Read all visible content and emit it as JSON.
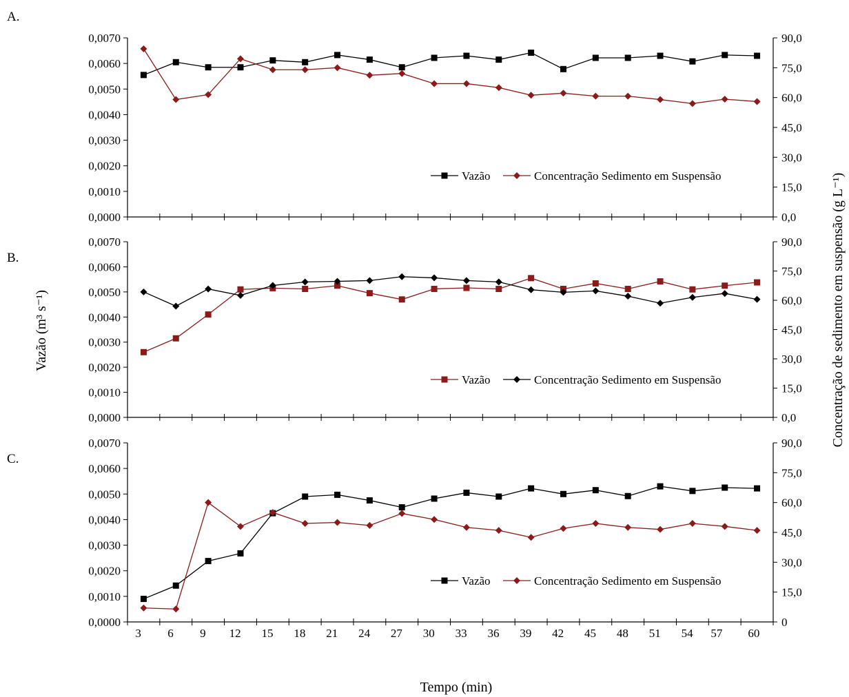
{
  "chart_data": [
    {
      "panel_label": "A.",
      "type": "line",
      "x": [
        4,
        7,
        10,
        13,
        16,
        19,
        22,
        25,
        28,
        31,
        34,
        37,
        40,
        43,
        46,
        49,
        52,
        55,
        58,
        61
      ],
      "left_axis": {
        "ylim": [
          0,
          0.007
        ],
        "ticks": [
          "0,0000",
          "0,0010",
          "0,0020",
          "0,0030",
          "0,0040",
          "0,0050",
          "0,0060",
          "0,0070"
        ]
      },
      "right_axis": {
        "ylim": [
          0,
          90
        ],
        "ticks": [
          "0,0",
          "15,0",
          "30,0",
          "45,0",
          "60,0",
          "75,0",
          "90,0"
        ]
      },
      "series": [
        {
          "name": "Vazão",
          "axis": "left",
          "marker": "square",
          "color": "#000000",
          "values": [
            0.00555,
            0.00605,
            0.00585,
            0.00585,
            0.00612,
            0.00605,
            0.00633,
            0.00615,
            0.00585,
            0.00622,
            0.0063,
            0.00615,
            0.00642,
            0.00578,
            0.00622,
            0.00622,
            0.0063,
            0.00608,
            0.00633,
            0.0063
          ]
        },
        {
          "name": "Concentração Sedimento em Suspensão",
          "axis": "right",
          "marker": "diamond",
          "color": "#8B1A1A",
          "values": [
            84.5,
            59.0,
            61.5,
            79.5,
            74.0,
            74.0,
            75.0,
            71.2,
            72.1,
            67.0,
            67.0,
            65.0,
            61.2,
            62.2,
            60.7,
            60.7,
            59.0,
            57.0,
            59.2,
            58.0
          ]
        }
      ],
      "legend": "bottom-right"
    },
    {
      "panel_label": "B.",
      "type": "line",
      "x": [
        4,
        7,
        10,
        13,
        16,
        19,
        22,
        25,
        28,
        31,
        34,
        37,
        40,
        43,
        46,
        49,
        52,
        55,
        58,
        61
      ],
      "left_axis": {
        "ylim": [
          0,
          0.007
        ],
        "ticks": [
          "0,0000",
          "0,0010",
          "0,0020",
          "0,0030",
          "0,0040",
          "0,0050",
          "0,0060",
          "0,0070"
        ]
      },
      "right_axis": {
        "ylim": [
          0,
          90
        ],
        "ticks": [
          "0,0",
          "15,0",
          "30,0",
          "45,0",
          "60,0",
          "75,0",
          "90,0"
        ]
      },
      "series": [
        {
          "name": "Vazão",
          "axis": "left",
          "marker": "square",
          "color": "#8B1A1A",
          "values": [
            0.0026,
            0.00315,
            0.0041,
            0.0051,
            0.00515,
            0.00512,
            0.00525,
            0.00495,
            0.0047,
            0.00512,
            0.00516,
            0.00512,
            0.00555,
            0.00512,
            0.00534,
            0.00512,
            0.00542,
            0.0051,
            0.00525,
            0.00538
          ]
        },
        {
          "name": "Concentração Sedimento em Suspensão",
          "axis": "right",
          "marker": "diamond",
          "color": "#000000",
          "values": [
            64.3,
            57.0,
            65.8,
            62.5,
            67.6,
            69.4,
            69.7,
            70.1,
            72.1,
            71.5,
            70.1,
            69.4,
            65.4,
            64.1,
            64.8,
            62.1,
            58.5,
            61.5,
            63.5,
            60.5
          ]
        }
      ],
      "legend": "bottom-right"
    },
    {
      "panel_label": "C.",
      "type": "line",
      "x": [
        4,
        7,
        10,
        13,
        16,
        19,
        22,
        25,
        28,
        31,
        34,
        37,
        40,
        43,
        46,
        49,
        52,
        55,
        58,
        61
      ],
      "left_axis": {
        "ylim": [
          0,
          0.007
        ],
        "ticks": [
          "0,0000",
          "0,0010",
          "0,0020",
          "0,0030",
          "0,0040",
          "0,0050",
          "0,0060",
          "0,0070"
        ]
      },
      "right_axis": {
        "ylim": [
          0,
          90
        ],
        "ticks": [
          "0",
          "15,0",
          "30,0",
          "45,0",
          "60,0",
          "75,0",
          "90,0"
        ]
      },
      "series": [
        {
          "name": "Vazão",
          "axis": "left",
          "marker": "square",
          "color": "#000000",
          "values": [
            0.0009,
            0.00142,
            0.00238,
            0.00268,
            0.00425,
            0.0049,
            0.00497,
            0.00475,
            0.00448,
            0.00482,
            0.00505,
            0.0049,
            0.00522,
            0.005,
            0.00515,
            0.00492,
            0.0053,
            0.00512,
            0.00525,
            0.00522
          ]
        },
        {
          "name": "Concentração Sedimento em Suspensão",
          "axis": "right",
          "marker": "diamond",
          "color": "#8B1A1A",
          "values": [
            7.0,
            6.5,
            60.0,
            48.0,
            55.0,
            49.5,
            50.0,
            48.5,
            54.5,
            51.5,
            47.5,
            46.0,
            42.5,
            47.0,
            49.5,
            47.5,
            46.5,
            49.5,
            48.0,
            46.0
          ]
        }
      ],
      "legend": "bottom-right"
    }
  ],
  "axes": {
    "x_ticks": [
      3,
      6,
      9,
      12,
      15,
      18,
      21,
      24,
      27,
      30,
      33,
      36,
      39,
      42,
      45,
      48,
      51,
      54,
      57,
      60
    ],
    "xlabel": "Tempo (min)",
    "ylabel_left": "Vazão (m³ s⁻¹)",
    "ylabel_right": "Concentração de sedimento em suspensão (g L⁻¹)"
  }
}
